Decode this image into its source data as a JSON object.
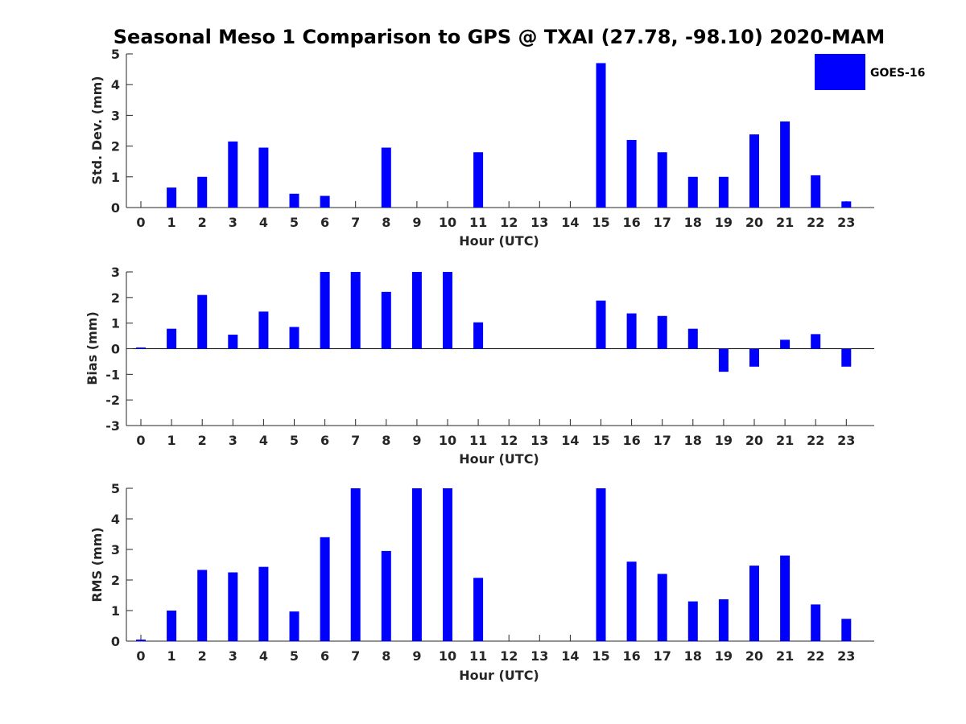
{
  "title": "Seasonal Meso 1 Comparison to GPS @ TXAI (27.78, -98.10) 2020-MAM",
  "legend": {
    "label": "GOES-16",
    "color": "#0000ff",
    "placement": "top-right"
  },
  "chart_data": [
    {
      "type": "bar",
      "name": "std-dev",
      "categories": [
        "0",
        "1",
        "2",
        "3",
        "4",
        "5",
        "6",
        "7",
        "8",
        "9",
        "10",
        "11",
        "12",
        "13",
        "14",
        "15",
        "16",
        "17",
        "18",
        "19",
        "20",
        "21",
        "22",
        "23"
      ],
      "series": [
        {
          "name": "GOES-16",
          "values": [
            0,
            0.65,
            1.0,
            2.15,
            1.95,
            0.45,
            0.38,
            0,
            1.95,
            0,
            0,
            1.8,
            0,
            0,
            0,
            4.7,
            2.2,
            1.8,
            1.0,
            1.0,
            2.38,
            2.8,
            1.05,
            0.2
          ]
        }
      ],
      "xlabel": "Hour (UTC)",
      "ylabel": "Std. Dev. (mm)",
      "ylim": [
        0,
        5
      ],
      "yticks": [
        "0",
        "1",
        "2",
        "3",
        "4",
        "5"
      ]
    },
    {
      "type": "bar",
      "name": "bias",
      "categories": [
        "0",
        "1",
        "2",
        "3",
        "4",
        "5",
        "6",
        "7",
        "8",
        "9",
        "10",
        "11",
        "12",
        "13",
        "14",
        "15",
        "16",
        "17",
        "18",
        "19",
        "20",
        "21",
        "22",
        "23"
      ],
      "series": [
        {
          "name": "GOES-16",
          "values": [
            0.05,
            0.78,
            2.1,
            0.55,
            1.45,
            0.85,
            3.0,
            3.0,
            2.22,
            3.0,
            3.0,
            1.03,
            0,
            0,
            0,
            1.88,
            1.38,
            1.28,
            0.78,
            -0.9,
            -0.7,
            0.35,
            0.57,
            -0.7
          ]
        }
      ],
      "xlabel": "Hour (UTC)",
      "ylabel": "Bias (mm)",
      "ylim": [
        -3,
        3
      ],
      "yticks": [
        "-3",
        "-2",
        "-1",
        "0",
        "1",
        "2",
        "3"
      ]
    },
    {
      "type": "bar",
      "name": "rms",
      "categories": [
        "0",
        "1",
        "2",
        "3",
        "4",
        "5",
        "6",
        "7",
        "8",
        "9",
        "10",
        "11",
        "12",
        "13",
        "14",
        "15",
        "16",
        "17",
        "18",
        "19",
        "20",
        "21",
        "22",
        "23"
      ],
      "series": [
        {
          "name": "GOES-16",
          "values": [
            0.05,
            1.0,
            2.33,
            2.25,
            2.43,
            0.97,
            3.4,
            5.0,
            2.95,
            5.0,
            5.0,
            2.07,
            0,
            0,
            0,
            5.0,
            2.6,
            2.2,
            1.3,
            1.37,
            2.47,
            2.8,
            1.2,
            0.73
          ]
        }
      ],
      "xlabel": "Hour (UTC)",
      "ylabel": "RMS (mm)",
      "ylim": [
        0,
        5
      ],
      "yticks": [
        "0",
        "1",
        "2",
        "3",
        "4",
        "5"
      ]
    }
  ]
}
